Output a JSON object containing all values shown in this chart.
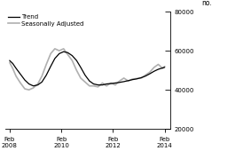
{
  "ylabel": "no.",
  "ylim": [
    20000,
    80000
  ],
  "yticks": [
    20000,
    40000,
    60000,
    80000
  ],
  "xlim_start": 2007.9,
  "xlim_end": 2014.3,
  "xticks": [
    2008.08,
    2010.08,
    2012.08,
    2014.08
  ],
  "xtick_labels": [
    "Feb\n2008",
    "Feb\n2010",
    "Feb\n2012",
    "Feb\n2014"
  ],
  "trend_color": "#000000",
  "seasonal_color": "#b0b0b0",
  "trend_linewidth": 0.9,
  "seasonal_linewidth": 1.2,
  "legend_labels": [
    "Trend",
    "Seasonally Adjusted"
  ],
  "background_color": "#ffffff",
  "trend_x": [
    2008.08,
    2008.2,
    2008.33,
    2008.5,
    2008.67,
    2008.83,
    2009.0,
    2009.17,
    2009.33,
    2009.5,
    2009.67,
    2009.83,
    2010.0,
    2010.17,
    2010.33,
    2010.5,
    2010.67,
    2010.83,
    2011.0,
    2011.17,
    2011.33,
    2011.5,
    2011.67,
    2011.83,
    2012.0,
    2012.17,
    2012.33,
    2012.5,
    2012.67,
    2012.83,
    2013.0,
    2013.17,
    2013.33,
    2013.5,
    2013.67,
    2013.83,
    2014.0,
    2014.08
  ],
  "trend_y": [
    55000,
    53500,
    51000,
    48000,
    45000,
    43000,
    42000,
    42500,
    44000,
    47500,
    52000,
    56000,
    58500,
    59500,
    59000,
    57500,
    55000,
    51500,
    47500,
    44500,
    43000,
    42500,
    42500,
    43000,
    43200,
    43500,
    43800,
    44200,
    44700,
    45200,
    45600,
    46200,
    47000,
    48200,
    49500,
    50500,
    51200,
    51500
  ],
  "seasonal_x": [
    2008.08,
    2008.2,
    2008.33,
    2008.5,
    2008.67,
    2008.83,
    2009.0,
    2009.17,
    2009.33,
    2009.5,
    2009.67,
    2009.83,
    2010.0,
    2010.17,
    2010.33,
    2010.5,
    2010.67,
    2010.83,
    2011.0,
    2011.17,
    2011.33,
    2011.5,
    2011.67,
    2011.83,
    2012.0,
    2012.17,
    2012.33,
    2012.5,
    2012.67,
    2012.83,
    2013.0,
    2013.17,
    2013.33,
    2013.5,
    2013.67,
    2013.83,
    2014.0,
    2014.08
  ],
  "seasonal_y": [
    54000,
    51000,
    47000,
    43500,
    40500,
    40000,
    41000,
    43000,
    47000,
    53000,
    58500,
    61000,
    60000,
    61000,
    58000,
    55000,
    50000,
    46000,
    44000,
    42000,
    42000,
    41500,
    43500,
    42000,
    43500,
    42500,
    44500,
    46000,
    44500,
    45500,
    45800,
    46000,
    47500,
    49000,
    51500,
    53000,
    51000,
    52000
  ]
}
